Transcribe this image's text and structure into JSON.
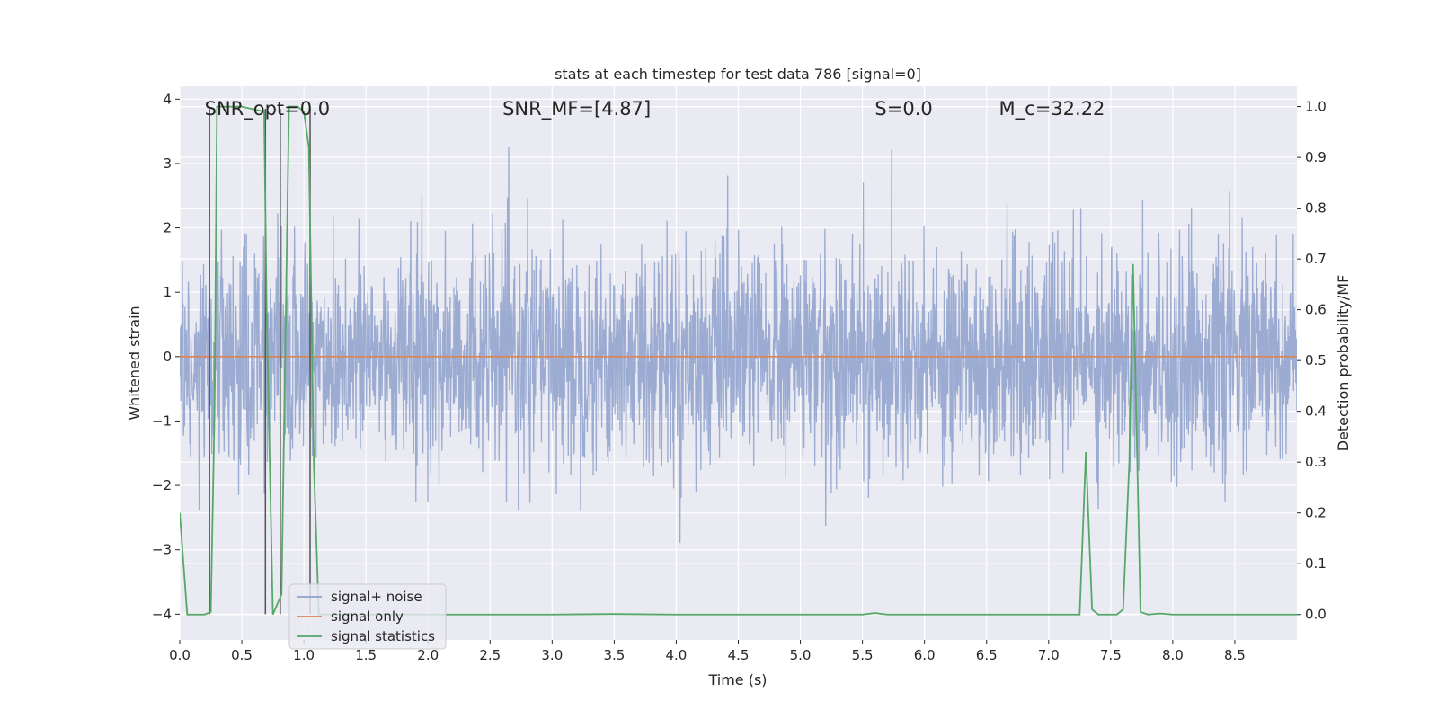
{
  "chart_data": {
    "type": "line",
    "title": "stats at each timestep for test data 786 [signal=0]",
    "xlabel": "Time (s)",
    "ylabel": "Whitened strain",
    "y2label": "Detection probability/MF",
    "xlim": [
      0.0,
      9.0
    ],
    "ylim": [
      -4.4,
      4.2
    ],
    "y2lim": [
      -0.05,
      1.04
    ],
    "xticks": [
      0.0,
      0.5,
      1.0,
      1.5,
      2.0,
      2.5,
      3.0,
      3.5,
      4.0,
      4.5,
      5.0,
      5.5,
      6.0,
      6.5,
      7.0,
      7.5,
      8.0,
      8.5
    ],
    "xtick_labels": [
      "0.0",
      "0.5",
      "1.0",
      "1.5",
      "2.0",
      "2.5",
      "3.0",
      "3.5",
      "4.0",
      "4.5",
      "5.0",
      "5.5",
      "6.0",
      "6.5",
      "7.0",
      "7.5",
      "8.0",
      "8.5"
    ],
    "yticks": [
      -4,
      -3,
      -2,
      -1,
      0,
      1,
      2,
      3,
      4
    ],
    "ytick_labels": [
      "−4",
      "−3",
      "−2",
      "−1",
      "0",
      "1",
      "2",
      "3",
      "4"
    ],
    "y2ticks": [
      0.0,
      0.1,
      0.2,
      0.3,
      0.4,
      0.5,
      0.6,
      0.7,
      0.8,
      0.9,
      1.0
    ],
    "y2tick_labels": [
      "0.0",
      "0.1",
      "0.2",
      "0.3",
      "0.4",
      "0.5",
      "0.6",
      "0.7",
      "0.8",
      "0.9",
      "1.0"
    ],
    "series": [
      {
        "name": "signal+ noise",
        "color": "#8da0cb",
        "axis": "left",
        "kind": "noise",
        "std": 0.85,
        "x_range": [
          0.0,
          9.0
        ],
        "samples": 3000,
        "note": "whitened noise trace, roughly Gaussian with peaks up to about +/-3.8"
      },
      {
        "name": "signal only",
        "color": "#dd8452",
        "axis": "left",
        "x": [
          0.0,
          9.0
        ],
        "y": [
          0.0,
          0.0
        ]
      },
      {
        "name": "signal statistics",
        "color": "#55a868",
        "axis": "right",
        "x": [
          0.0,
          0.06,
          0.2,
          0.25,
          0.28,
          0.3,
          0.5,
          0.68,
          0.7,
          0.75,
          0.82,
          0.88,
          0.95,
          1.0,
          1.04,
          1.08,
          1.12,
          1.2,
          1.5,
          2.0,
          2.5,
          3.0,
          3.5,
          4.0,
          4.5,
          5.0,
          5.5,
          5.6,
          5.7,
          6.0,
          6.5,
          7.0,
          7.25,
          7.3,
          7.35,
          7.4,
          7.45,
          7.55,
          7.6,
          7.65,
          7.68,
          7.74,
          7.8,
          7.9,
          8.0,
          8.5,
          9.0
        ],
        "y": [
          0.2,
          0.0,
          0.0,
          0.005,
          0.4,
          1.0,
          1.0,
          0.99,
          0.6,
          0.0,
          0.04,
          1.0,
          1.0,
          0.99,
          0.92,
          0.3,
          0.0,
          0.0,
          0.0,
          0.0,
          0.0,
          0.0,
          0.001,
          0.0,
          0.0,
          0.0,
          0.0,
          0.003,
          0.0,
          0.0,
          0.0,
          0.0,
          0.0,
          0.32,
          0.01,
          0.0,
          0.0,
          0.0,
          0.01,
          0.3,
          0.69,
          0.005,
          0.0,
          0.002,
          0.0,
          0.0,
          0.0
        ]
      }
    ],
    "vertical_markers": [
      0.24,
      0.69,
      0.81,
      1.05
    ],
    "annotations": [
      {
        "text": "SNR_opt=0.0",
        "x": 0.2,
        "y": 3.85
      },
      {
        "text": "SNR_MF=[4.87]",
        "x": 2.6,
        "y": 3.85
      },
      {
        "text": "S=0.0",
        "x": 5.6,
        "y": 3.85
      },
      {
        "text": "M_c=32.22",
        "x": 6.6,
        "y": 3.85
      }
    ],
    "legend": {
      "position": "lower-left",
      "entries": [
        "signal+ noise",
        "signal only",
        "signal statistics"
      ]
    },
    "grid": true
  }
}
